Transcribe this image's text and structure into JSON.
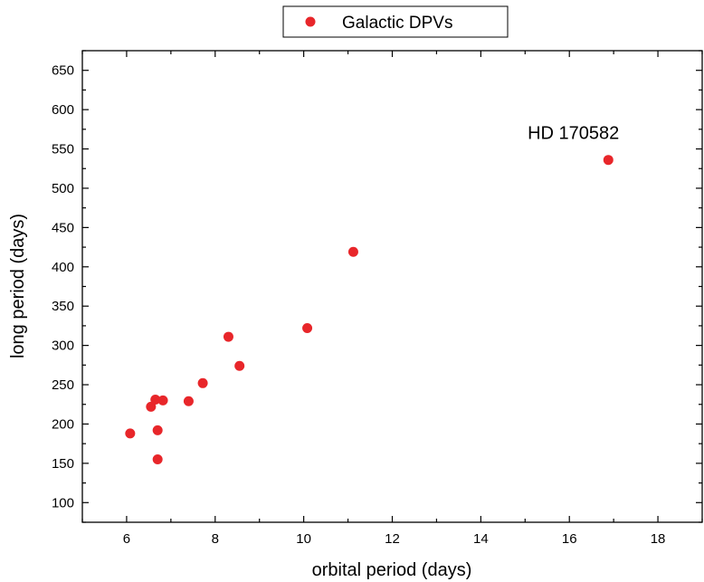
{
  "chart_data": {
    "type": "scatter",
    "legend": {
      "position": "top-center",
      "entries": [
        "Galactic DPVs"
      ]
    },
    "series": [
      {
        "name": "Galactic DPVs",
        "color": "#e8262a",
        "points": [
          {
            "x": 6.08,
            "y": 188
          },
          {
            "x": 6.55,
            "y": 222
          },
          {
            "x": 6.65,
            "y": 231
          },
          {
            "x": 6.7,
            "y": 192
          },
          {
            "x": 6.7,
            "y": 155
          },
          {
            "x": 6.82,
            "y": 230
          },
          {
            "x": 7.4,
            "y": 229
          },
          {
            "x": 7.72,
            "y": 252
          },
          {
            "x": 8.3,
            "y": 311
          },
          {
            "x": 8.55,
            "y": 274
          },
          {
            "x": 10.08,
            "y": 322
          },
          {
            "x": 11.12,
            "y": 419
          },
          {
            "x": 16.88,
            "y": 536
          }
        ]
      }
    ],
    "xlabel": "orbital period (days)",
    "ylabel": "long period (days)",
    "xlim": [
      5,
      19
    ],
    "ylim": [
      75,
      675
    ],
    "xticks": [
      6,
      8,
      10,
      12,
      14,
      16,
      18
    ],
    "yticks": [
      100,
      150,
      200,
      250,
      300,
      350,
      400,
      450,
      500,
      550,
      600,
      650
    ],
    "annotations": [
      {
        "text": "HD 170582",
        "x": 16.88,
        "y": 536
      }
    ],
    "grid": false
  }
}
